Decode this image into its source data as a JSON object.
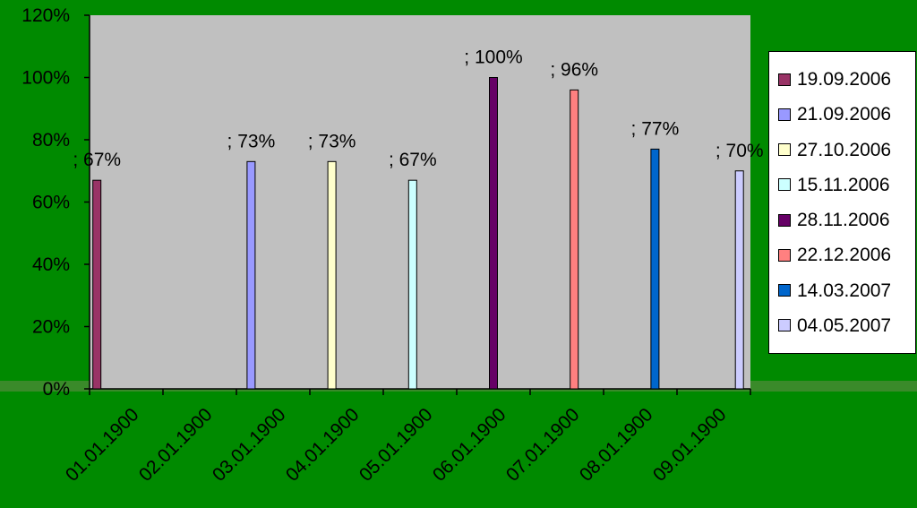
{
  "colors": {
    "background": "#008a00",
    "plot_area": "#c0c0c0",
    "axis": "#000000"
  },
  "chart_data": {
    "type": "bar",
    "title": "",
    "xlabel": "",
    "ylabel": "",
    "ylim": [
      0,
      1.2
    ],
    "y_ticks": [
      {
        "value": 0,
        "label": "0%"
      },
      {
        "value": 0.2,
        "label": "20%"
      },
      {
        "value": 0.4,
        "label": "40%"
      },
      {
        "value": 0.6,
        "label": "60%"
      },
      {
        "value": 0.8,
        "label": "80%"
      },
      {
        "value": 1.0,
        "label": "100%"
      },
      {
        "value": 1.2,
        "label": "120%"
      }
    ],
    "categories": [
      "01.01.1900",
      "02.01.1900",
      "03.01.1900",
      "04.01.1900",
      "05.01.1900",
      "06.01.1900",
      "07.01.1900",
      "08.01.1900",
      "09.01.1900"
    ],
    "grid": false,
    "legend_position": "right",
    "series": [
      {
        "name": "19.09.2006",
        "x": 1.1,
        "value": 0.67,
        "label": "; 67%",
        "color": "#993366"
      },
      {
        "name": "21.09.2006",
        "x": 3.2,
        "value": 0.73,
        "label": "; 73%",
        "color": "#9999ff"
      },
      {
        "name": "27.10.2006",
        "x": 4.3,
        "value": 0.73,
        "label": "; 73%",
        "color": "#ffffcc"
      },
      {
        "name": "15.11.2006",
        "x": 5.4,
        "value": 0.67,
        "label": "; 67%",
        "color": "#ccffff"
      },
      {
        "name": "28.11.2006",
        "x": 6.5,
        "value": 1.0,
        "label": "; 100%",
        "color": "#660066"
      },
      {
        "name": "22.12.2006",
        "x": 7.6,
        "value": 0.96,
        "label": "; 96%",
        "color": "#ff8080"
      },
      {
        "name": "14.03.2007",
        "x": 8.7,
        "value": 0.77,
        "label": "; 77%",
        "color": "#0066cc"
      },
      {
        "name": "04.05.2007",
        "x": 9.85,
        "value": 0.7,
        "label": "; 70%",
        "color": "#ccccff"
      }
    ]
  }
}
